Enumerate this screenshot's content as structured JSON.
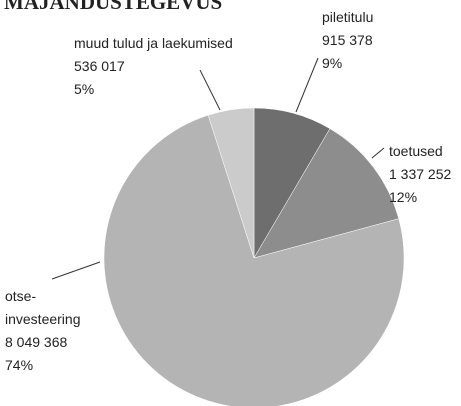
{
  "chart_data": {
    "type": "pie",
    "title": "MAJANDUSTEGEVUS",
    "categories": [
      "piletitulu",
      "toetused",
      "otse-\ninvesteering",
      "muud tulud ja laekumised"
    ],
    "values": [
      915378,
      1337252,
      8049368,
      536017
    ],
    "value_labels": [
      "915 378",
      "1 337 252",
      "8 049 368",
      "536 017"
    ],
    "percents": [
      9,
      12,
      74,
      5
    ],
    "percent_labels": [
      "9%",
      "12%",
      "74%",
      "5%"
    ],
    "colors": [
      "#6e6e6e",
      "#8d8d8d",
      "#b4b4b4",
      "#cbcbcb"
    ]
  }
}
